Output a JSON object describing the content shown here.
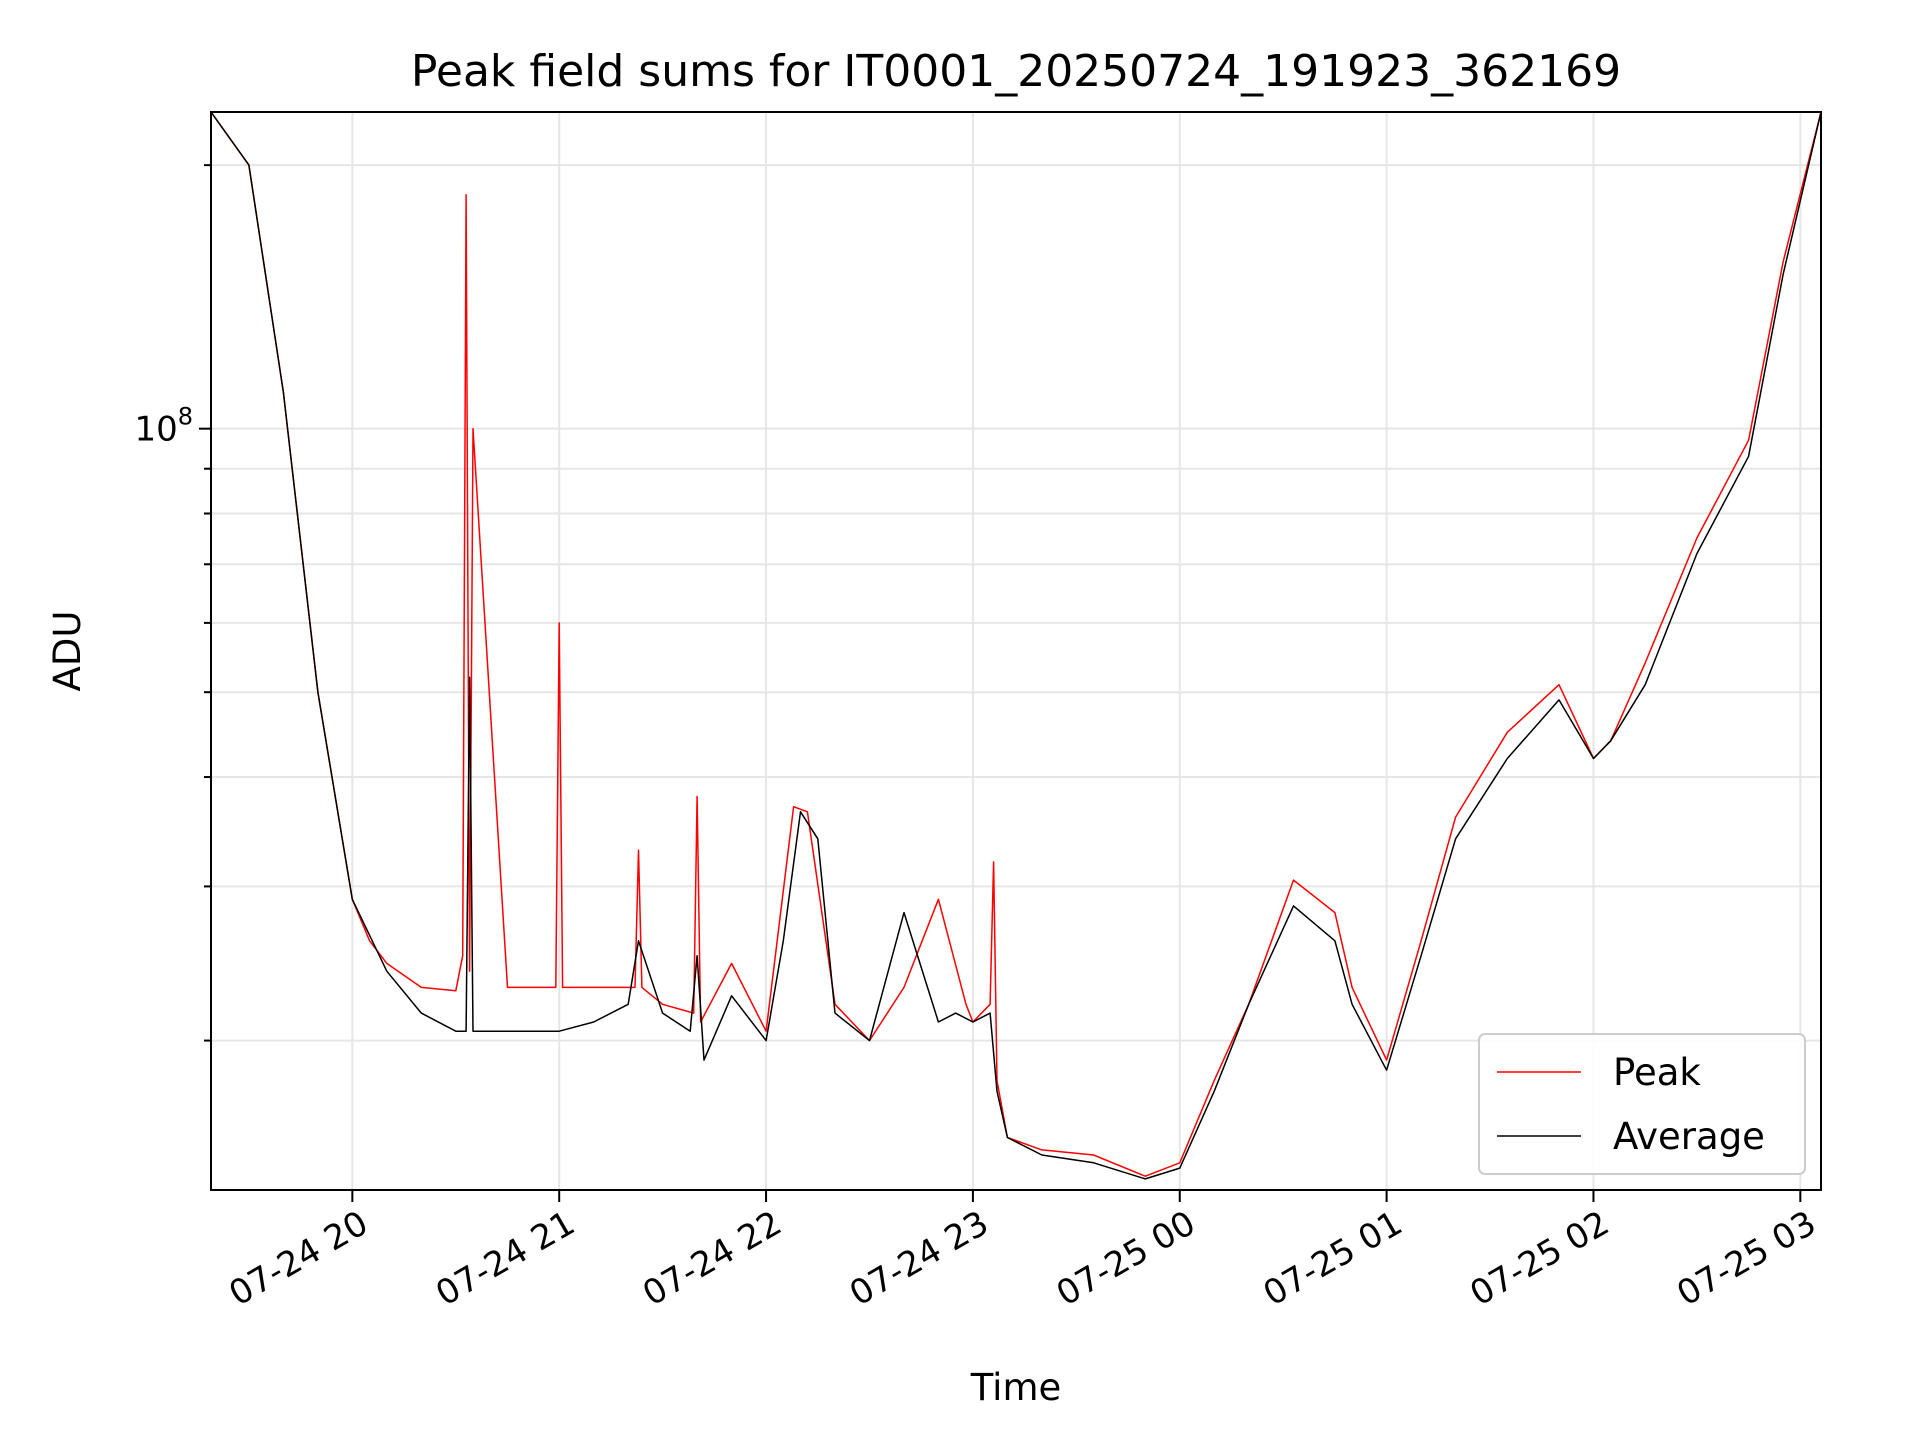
{
  "chart_data": {
    "type": "line",
    "title": "Peak field sums for IT0001_20250724_191923_362169",
    "xlabel": "Time",
    "ylabel": "ADU",
    "y_scale": "log",
    "ylim": [
      13500000,
      230000000
    ],
    "xlim": [
      "2025-07-24 19:19",
      "2025-07-25 03:06"
    ],
    "grid": true,
    "legend_position": "lower right",
    "x_ticks": [
      {
        "label": "07-24 20",
        "time": "2025-07-24 20:00"
      },
      {
        "label": "07-24 21",
        "time": "2025-07-24 21:00"
      },
      {
        "label": "07-24 22",
        "time": "2025-07-24 22:00"
      },
      {
        "label": "07-24 23",
        "time": "2025-07-24 23:00"
      },
      {
        "label": "07-25 00",
        "time": "2025-07-25 00:00"
      },
      {
        "label": "07-25 01",
        "time": "2025-07-25 01:00"
      },
      {
        "label": "07-25 02",
        "time": "2025-07-25 02:00"
      },
      {
        "label": "07-25 03",
        "time": "2025-07-25 03:00"
      }
    ],
    "y_ticks": [
      {
        "label": "10",
        "exponent": "8",
        "value": 100000000
      }
    ],
    "series": [
      {
        "name": "Peak",
        "color": "#ff0000",
        "time": [
          "2025-07-24 19:19",
          "2025-07-24 19:30",
          "2025-07-24 19:40",
          "2025-07-24 19:50",
          "2025-07-24 20:00",
          "2025-07-24 20:05",
          "2025-07-24 20:10",
          "2025-07-24 20:20",
          "2025-07-24 20:30",
          "2025-07-24 20:32",
          "2025-07-24 20:33",
          "2025-07-24 20:34",
          "2025-07-24 20:35",
          "2025-07-24 20:45",
          "2025-07-24 20:59",
          "2025-07-24 21:00",
          "2025-07-24 21:01",
          "2025-07-24 21:10",
          "2025-07-24 21:22",
          "2025-07-24 21:23",
          "2025-07-24 21:24",
          "2025-07-24 21:30",
          "2025-07-24 21:39",
          "2025-07-24 21:40",
          "2025-07-24 21:41",
          "2025-07-24 21:50",
          "2025-07-24 22:00",
          "2025-07-24 22:08",
          "2025-07-24 22:12",
          "2025-07-24 22:20",
          "2025-07-24 22:30",
          "2025-07-24 22:40",
          "2025-07-24 22:50",
          "2025-07-24 22:58",
          "2025-07-24 23:00",
          "2025-07-24 23:05",
          "2025-07-24 23:06",
          "2025-07-24 23:07",
          "2025-07-24 23:10",
          "2025-07-24 23:20",
          "2025-07-24 23:35",
          "2025-07-24 23:50",
          "2025-07-25 00:00",
          "2025-07-25 00:10",
          "2025-07-25 00:20",
          "2025-07-25 00:33",
          "2025-07-25 00:45",
          "2025-07-25 00:50",
          "2025-07-25 01:00",
          "2025-07-25 01:10",
          "2025-07-25 01:20",
          "2025-07-25 01:35",
          "2025-07-25 01:50",
          "2025-07-25 02:00",
          "2025-07-25 02:05",
          "2025-07-25 02:15",
          "2025-07-25 02:30",
          "2025-07-25 02:45",
          "2025-07-25 02:55",
          "2025-07-25 03:06"
        ],
        "values": [
          230000000,
          200000000,
          110000000,
          50000000,
          29000000,
          26000000,
          24500000,
          23000000,
          22800000,
          25000000,
          185000000,
          24000000,
          100000000,
          23000000,
          23000000,
          60000000,
          23000000,
          23000000,
          23000000,
          33000000,
          23000000,
          22000000,
          21500000,
          38000000,
          21000000,
          24500000,
          20500000,
          37000000,
          36500000,
          22000000,
          20000000,
          23000000,
          29000000,
          22000000,
          21000000,
          22000000,
          32000000,
          18000000,
          15500000,
          15000000,
          14800000,
          14000000,
          14500000,
          18000000,
          22000000,
          30500000,
          28000000,
          23000000,
          19000000,
          26000000,
          36000000,
          45000000,
          51000000,
          42000000,
          44000000,
          54000000,
          75000000,
          97000000,
          155000000,
          230000000
        ]
      },
      {
        "name": "Average",
        "color": "#000000",
        "time": [
          "2025-07-24 19:19",
          "2025-07-24 19:30",
          "2025-07-24 19:40",
          "2025-07-24 19:50",
          "2025-07-24 20:00",
          "2025-07-24 20:10",
          "2025-07-24 20:20",
          "2025-07-24 20:30",
          "2025-07-24 20:33",
          "2025-07-24 20:34",
          "2025-07-24 20:35",
          "2025-07-24 20:45",
          "2025-07-24 21:00",
          "2025-07-24 21:10",
          "2025-07-24 21:20",
          "2025-07-24 21:23",
          "2025-07-24 21:30",
          "2025-07-24 21:38",
          "2025-07-24 21:40",
          "2025-07-24 21:42",
          "2025-07-24 21:50",
          "2025-07-24 22:00",
          "2025-07-24 22:05",
          "2025-07-24 22:10",
          "2025-07-24 22:15",
          "2025-07-24 22:20",
          "2025-07-24 22:30",
          "2025-07-24 22:40",
          "2025-07-24 22:50",
          "2025-07-24 22:55",
          "2025-07-24 23:00",
          "2025-07-24 23:05",
          "2025-07-24 23:07",
          "2025-07-24 23:10",
          "2025-07-24 23:20",
          "2025-07-24 23:35",
          "2025-07-24 23:50",
          "2025-07-25 00:00",
          "2025-07-25 00:10",
          "2025-07-25 00:20",
          "2025-07-25 00:33",
          "2025-07-25 00:45",
          "2025-07-25 00:50",
          "2025-07-25 01:00",
          "2025-07-25 01:10",
          "2025-07-25 01:20",
          "2025-07-25 01:35",
          "2025-07-25 01:50",
          "2025-07-25 02:00",
          "2025-07-25 02:05",
          "2025-07-25 02:15",
          "2025-07-25 02:30",
          "2025-07-25 02:45",
          "2025-07-25 02:55",
          "2025-07-25 03:06"
        ],
        "values": [
          230000000,
          200000000,
          110000000,
          50000000,
          29000000,
          24000000,
          21500000,
          20500000,
          20500000,
          52000000,
          20500000,
          20500000,
          20500000,
          21000000,
          22000000,
          26000000,
          21500000,
          20500000,
          25000000,
          19000000,
          22500000,
          20000000,
          26000000,
          36500000,
          34000000,
          21500000,
          20000000,
          28000000,
          21000000,
          21500000,
          21000000,
          21500000,
          17500000,
          15500000,
          14800000,
          14500000,
          13900000,
          14300000,
          17500000,
          22000000,
          28500000,
          26000000,
          22000000,
          18500000,
          25000000,
          34000000,
          42000000,
          49000000,
          42000000,
          44000000,
          51000000,
          72000000,
          93000000,
          150000000,
          230000000
        ]
      }
    ]
  }
}
